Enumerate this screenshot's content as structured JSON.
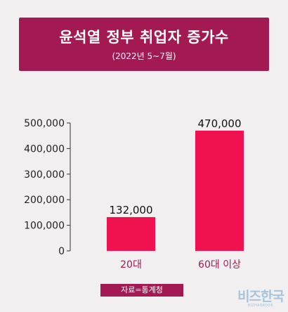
{
  "chart_data": {
    "type": "bar",
    "title": "윤석열 정부 취업자 증가수",
    "subtitle": "(2022년 5~7월)",
    "categories": [
      "20대",
      "60대 이상"
    ],
    "values": [
      132000,
      470000
    ],
    "data_labels": [
      "132,000",
      "470,000"
    ],
    "ylim": [
      0,
      500000
    ],
    "yticks": [
      0,
      100000,
      200000,
      300000,
      400000,
      500000
    ],
    "ytick_labels": [
      "0",
      "100,000",
      "200,000",
      "300,000",
      "400,000",
      "500,000"
    ],
    "grid": false,
    "bar_color": "#f0124e",
    "category_label_color": "#a31a52"
  },
  "source": "자료=통계청",
  "logo": {
    "main": "비즈한국",
    "sub": "BIZHANKOOK"
  }
}
